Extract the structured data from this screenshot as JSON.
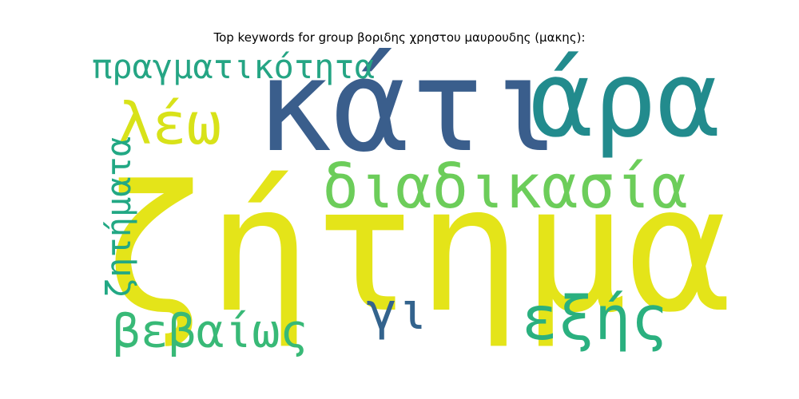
{
  "title": "Top keywords for group βοριδης χρηστου μαυρουδης (μακης):",
  "words": [
    {
      "text": "ζήτημα",
      "color": "#e4e419",
      "rotated": false
    },
    {
      "text": "κάτι",
      "color": "#3a5e8c",
      "rotated": false
    },
    {
      "text": "άρα",
      "color": "#228b8d",
      "rotated": false
    },
    {
      "text": "διαδικασία",
      "color": "#6ccd5a",
      "rotated": false
    },
    {
      "text": "λέω",
      "color": "#d8e219",
      "rotated": false
    },
    {
      "text": "πραγματικότητα",
      "color": "#25a584",
      "rotated": false
    },
    {
      "text": "ζητήματα",
      "color": "#22a884",
      "rotated": true
    },
    {
      "text": "εξής",
      "color": "#2ab07f",
      "rotated": false
    },
    {
      "text": "βεβαίως",
      "color": "#38b977",
      "rotated": false
    },
    {
      "text": "γι",
      "color": "#33638d",
      "rotated": false
    }
  ]
}
